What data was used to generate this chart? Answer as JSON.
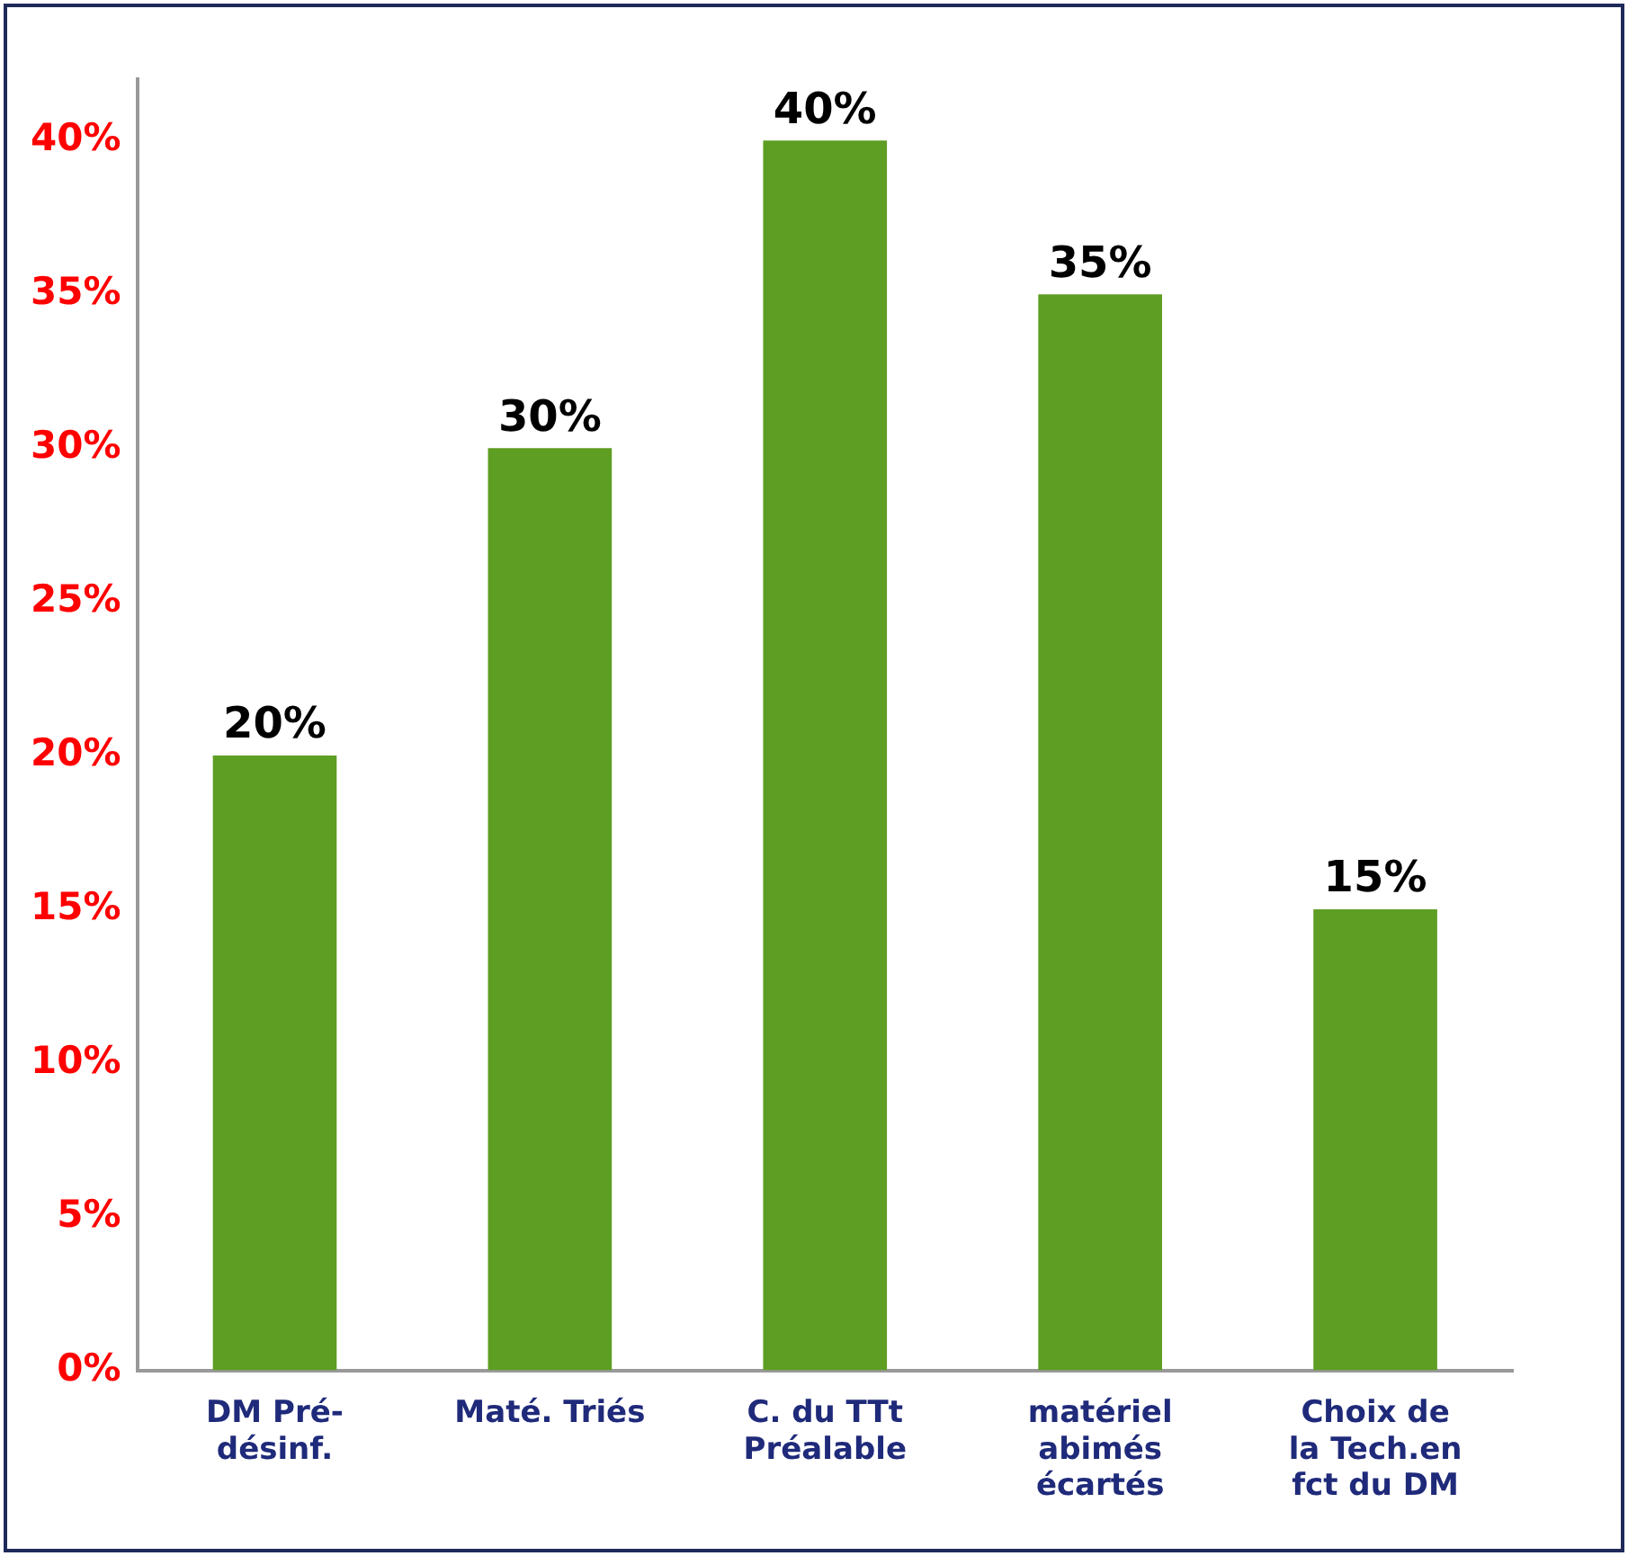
{
  "chart_data": {
    "type": "bar",
    "categories": [
      "DM Pré-\ndésinf.",
      "Maté. Triés",
      "C. du TTt\nPréalable",
      "matériel\nabimés\nécartés",
      "Choix de\nla Tech.en\nfct du DM"
    ],
    "values": [
      20,
      30,
      40,
      35,
      15
    ],
    "color": "#5e9e23",
    "ylim": [
      0,
      42
    ],
    "yticks": [
      {
        "value": 0,
        "label": "0%"
      },
      {
        "value": 5,
        "label": "5%"
      },
      {
        "value": 10,
        "label": "10%"
      },
      {
        "value": 15,
        "label": "15%"
      },
      {
        "value": 20,
        "label": "20%"
      },
      {
        "value": 25,
        "label": "25%"
      },
      {
        "value": 30,
        "label": "30%"
      },
      {
        "value": 35,
        "label": "35%"
      },
      {
        "value": 40,
        "label": "40%"
      }
    ],
    "value_labels": [
      "20%",
      "30%",
      "40%",
      "35%",
      "15%"
    ],
    "grid": false,
    "legend": false
  }
}
